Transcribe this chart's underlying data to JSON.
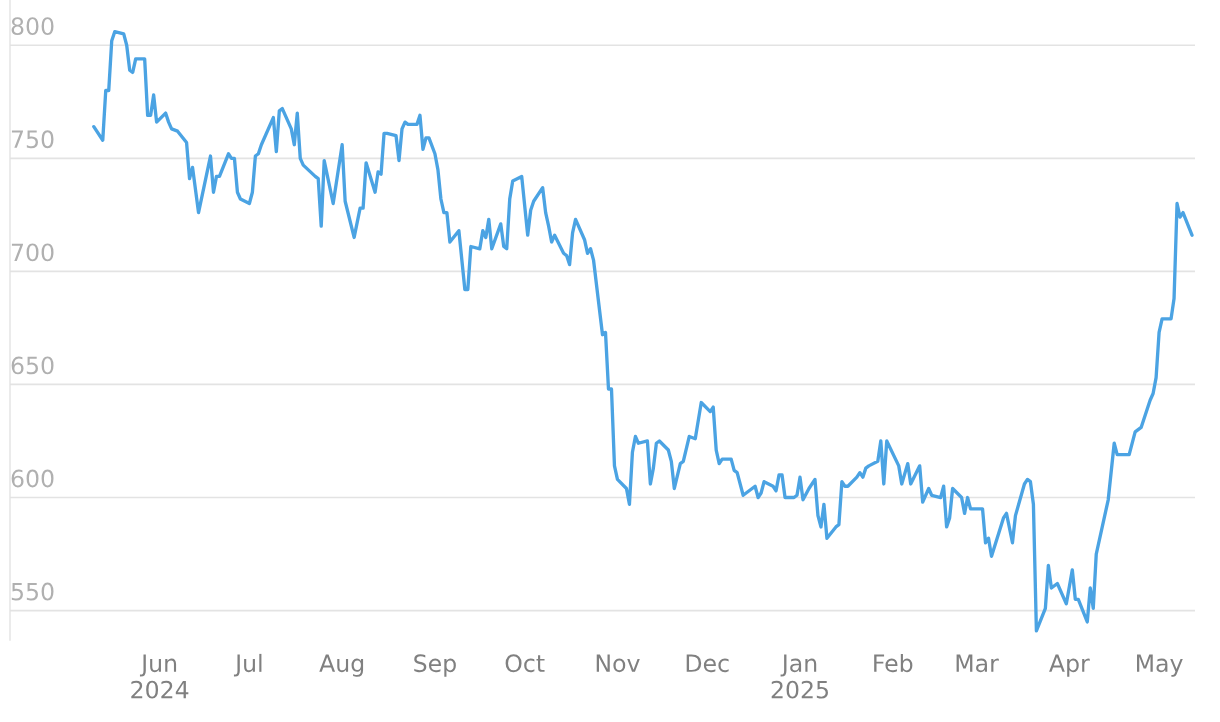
{
  "chart_data": {
    "type": "line",
    "x": [
      "2024-05-10",
      "2024-05-13",
      "2024-05-14",
      "2024-05-15",
      "2024-05-16",
      "2024-05-17",
      "2024-05-20",
      "2024-05-21",
      "2024-05-22",
      "2024-05-23",
      "2024-05-24",
      "2024-05-27",
      "2024-05-28",
      "2024-05-29",
      "2024-05-30",
      "2024-05-31",
      "2024-06-03",
      "2024-06-04",
      "2024-06-05",
      "2024-06-07",
      "2024-06-10",
      "2024-06-11",
      "2024-06-12",
      "2024-06-14",
      "2024-06-18",
      "2024-06-19",
      "2024-06-20",
      "2024-06-21",
      "2024-06-24",
      "2024-06-25",
      "2024-06-26",
      "2024-06-27",
      "2024-06-28",
      "2024-07-01",
      "2024-07-02",
      "2024-07-03",
      "2024-07-04",
      "2024-07-05",
      "2024-07-09",
      "2024-07-10",
      "2024-07-11",
      "2024-07-12",
      "2024-07-15",
      "2024-07-16",
      "2024-07-17",
      "2024-07-18",
      "2024-07-19",
      "2024-07-23",
      "2024-07-24",
      "2024-07-25",
      "2024-07-26",
      "2024-07-29",
      "2024-08-01",
      "2024-08-02",
      "2024-08-05",
      "2024-08-07",
      "2024-08-08",
      "2024-08-09",
      "2024-08-12",
      "2024-08-13",
      "2024-08-14",
      "2024-08-15",
      "2024-08-16",
      "2024-08-19",
      "2024-08-20",
      "2024-08-21",
      "2024-08-22",
      "2024-08-23",
      "2024-08-26",
      "2024-08-27",
      "2024-08-28",
      "2024-08-29",
      "2024-08-30",
      "2024-09-01",
      "2024-09-02",
      "2024-09-03",
      "2024-09-04",
      "2024-09-05",
      "2024-09-06",
      "2024-09-09",
      "2024-09-11",
      "2024-09-12",
      "2024-09-13",
      "2024-09-16",
      "2024-09-17",
      "2024-09-18",
      "2024-09-19",
      "2024-09-20",
      "2024-09-23",
      "2024-09-24",
      "2024-09-25",
      "2024-09-26",
      "2024-09-27",
      "2024-09-30",
      "2024-10-02",
      "2024-10-03",
      "2024-10-04",
      "2024-10-07",
      "2024-10-08",
      "2024-10-09",
      "2024-10-10",
      "2024-10-11",
      "2024-10-14",
      "2024-10-15",
      "2024-10-16",
      "2024-10-17",
      "2024-10-18",
      "2024-10-21",
      "2024-10-22",
      "2024-10-23",
      "2024-10-24",
      "2024-10-27",
      "2024-10-28",
      "2024-10-29",
      "2024-10-30",
      "2024-10-31",
      "2024-11-01",
      "2024-11-04",
      "2024-11-05",
      "2024-11-06",
      "2024-11-07",
      "2024-11-08",
      "2024-11-11",
      "2024-11-12",
      "2024-11-13",
      "2024-11-14",
      "2024-11-15",
      "2024-11-18",
      "2024-11-19",
      "2024-11-20",
      "2024-11-22",
      "2024-11-23",
      "2024-11-25",
      "2024-11-27",
      "2024-11-29",
      "2024-12-02",
      "2024-12-03",
      "2024-12-04",
      "2024-12-05",
      "2024-12-06",
      "2024-12-09",
      "2024-12-10",
      "2024-12-11",
      "2024-12-13",
      "2024-12-16",
      "2024-12-17",
      "2024-12-18",
      "2024-12-19",
      "2024-12-20",
      "2024-12-23",
      "2024-12-24",
      "2024-12-25",
      "2024-12-26",
      "2024-12-27",
      "2024-12-30",
      "2024-12-31",
      "2025-01-01",
      "2025-01-02",
      "2025-01-04",
      "2025-01-06",
      "2025-01-07",
      "2025-01-08",
      "2025-01-09",
      "2025-01-10",
      "2025-01-13",
      "2025-01-14",
      "2025-01-15",
      "2025-01-16",
      "2025-01-17",
      "2025-01-20",
      "2025-01-21",
      "2025-01-22",
      "2025-01-23",
      "2025-01-24",
      "2025-01-27",
      "2025-01-28",
      "2025-01-29",
      "2025-01-30",
      "2025-02-03",
      "2025-02-04",
      "2025-02-06",
      "2025-02-07",
      "2025-02-10",
      "2025-02-11",
      "2025-02-13",
      "2025-02-14",
      "2025-02-17",
      "2025-02-18",
      "2025-02-19",
      "2025-02-20",
      "2025-02-21",
      "2025-02-24",
      "2025-02-25",
      "2025-02-26",
      "2025-02-27",
      "2025-03-03",
      "2025-03-04",
      "2025-03-05",
      "2025-03-06",
      "2025-03-10",
      "2025-03-11",
      "2025-03-13",
      "2025-03-14",
      "2025-03-17",
      "2025-03-18",
      "2025-03-19",
      "2025-03-20",
      "2025-03-21",
      "2025-03-24",
      "2025-03-25",
      "2025-03-26",
      "2025-03-28",
      "2025-03-31",
      "2025-04-02",
      "2025-04-03",
      "2025-04-04",
      "2025-04-07",
      "2025-04-08",
      "2025-04-09",
      "2025-04-10",
      "2025-04-14",
      "2025-04-16",
      "2025-04-17",
      "2025-04-21",
      "2025-04-23",
      "2025-04-25",
      "2025-04-28",
      "2025-04-29",
      "2025-04-30",
      "2025-05-01",
      "2025-05-02",
      "2025-05-05",
      "2025-05-06",
      "2025-05-07",
      "2025-05-08",
      "2025-05-09",
      "2025-05-12"
    ],
    "series": [
      {
        "color": "#4ba3e3",
        "values": [
          764,
          758,
          780,
          780,
          802,
          806,
          805,
          800,
          789,
          788,
          794,
          794,
          769,
          769,
          778,
          766,
          770,
          766,
          763,
          762,
          757,
          741,
          746,
          726,
          751,
          735,
          742,
          742,
          752,
          750,
          750,
          735,
          732,
          730,
          735,
          751,
          752,
          756,
          768,
          753,
          771,
          772,
          763,
          756,
          770,
          750,
          747,
          742,
          741,
          720,
          749,
          730,
          756,
          731,
          715,
          728,
          728,
          748,
          735,
          744,
          743,
          761,
          761,
          760,
          749,
          763,
          766,
          765,
          765,
          769,
          754,
          759,
          759,
          752,
          745,
          732,
          726,
          726,
          713,
          718,
          692,
          692,
          711,
          710,
          718,
          715,
          723,
          710,
          721,
          711,
          710,
          732,
          740,
          742,
          716,
          727,
          731,
          737,
          726,
          720,
          713,
          716,
          708,
          707,
          703,
          717,
          723,
          714,
          708,
          710,
          705,
          672,
          673,
          648,
          648,
          614,
          608,
          604,
          597,
          620,
          627,
          624,
          625,
          606,
          613,
          624,
          625,
          621,
          616,
          604,
          615,
          616,
          627,
          626,
          642,
          638,
          640,
          621,
          615,
          617,
          617,
          612,
          611,
          601,
          604,
          605,
          600,
          602,
          607,
          605,
          603,
          610,
          610,
          600,
          600,
          601,
          609,
          599,
          604,
          608,
          592,
          587,
          597,
          582,
          587,
          588,
          607,
          605,
          605,
          609,
          611,
          609,
          613,
          614,
          616,
          625,
          606,
          625,
          614,
          606,
          615,
          606,
          614,
          598,
          604,
          601,
          600,
          605,
          587,
          591,
          604,
          600,
          593,
          600,
          595,
          595,
          580,
          582,
          574,
          591,
          593,
          580,
          592,
          606,
          608,
          607,
          597,
          541,
          551,
          570,
          560,
          562,
          553,
          568,
          555,
          555,
          545,
          560,
          551,
          575,
          599,
          624,
          619,
          619,
          629,
          631,
          643,
          646,
          653,
          673,
          679,
          679,
          688,
          730,
          724,
          726,
          716
        ]
      }
    ],
    "xlim": [
      "2024-04-12",
      "2025-05-13"
    ],
    "xticks": [
      {
        "value": "2024-06-01",
        "label": "Jun\n2024"
      },
      {
        "value": "2024-07-01",
        "label": "Jul"
      },
      {
        "value": "2024-08-01",
        "label": "Aug"
      },
      {
        "value": "2024-09-01",
        "label": "Sep"
      },
      {
        "value": "2024-10-01",
        "label": "Oct"
      },
      {
        "value": "2024-11-01",
        "label": "Nov"
      },
      {
        "value": "2024-12-01",
        "label": "Dec"
      },
      {
        "value": "2025-01-01",
        "label": "Jan\n2025"
      },
      {
        "value": "2025-02-01",
        "label": "Feb"
      },
      {
        "value": "2025-03-01",
        "label": "Mar"
      },
      {
        "value": "2025-04-01",
        "label": "Apr"
      },
      {
        "value": "2025-05-01",
        "label": "May"
      }
    ],
    "ylim": [
      537,
      820
    ],
    "yticks": [
      550,
      600,
      650,
      700,
      750,
      800
    ],
    "grid": "y"
  }
}
